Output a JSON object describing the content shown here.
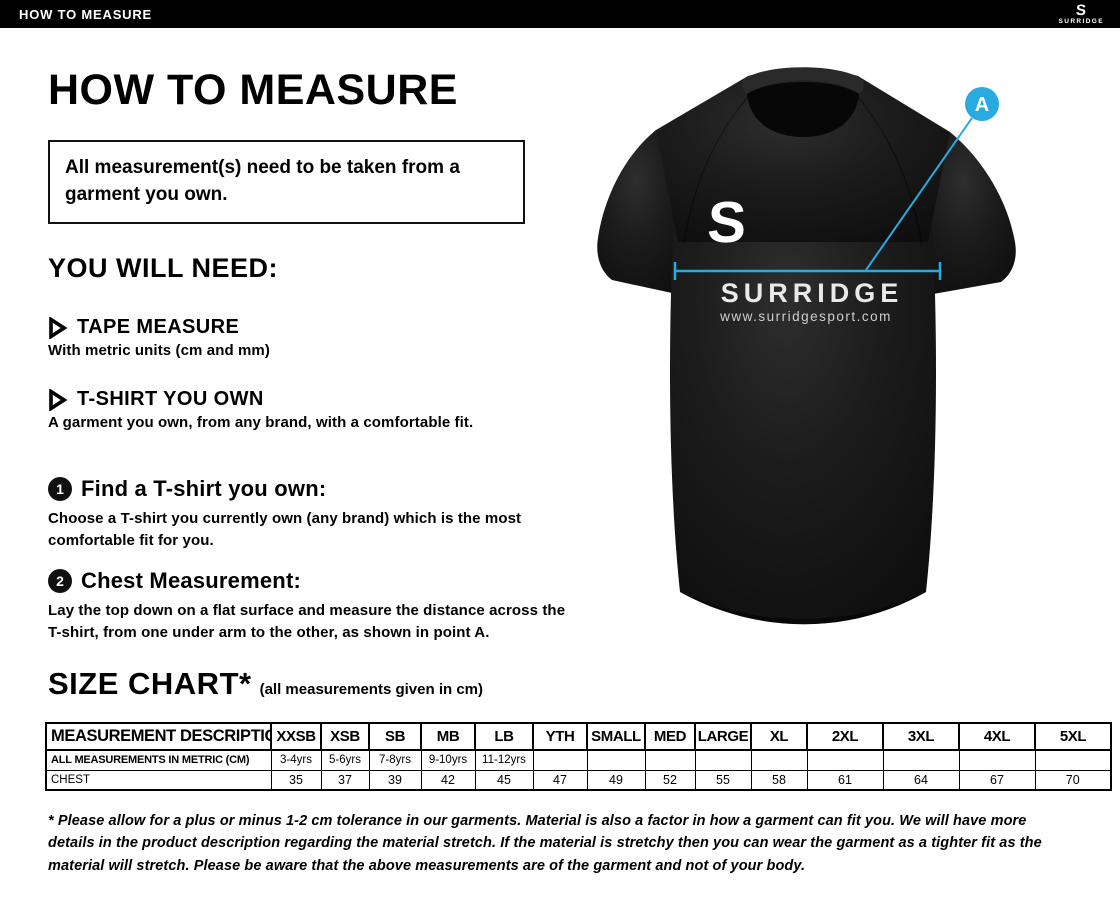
{
  "colors": {
    "accent": "#29abe2",
    "topbar_bg": "#000000",
    "text": "#000000"
  },
  "topbar": {
    "title": "HOW TO MEASURE",
    "logo": {
      "letter": "S",
      "brand": "SURRIDGE"
    }
  },
  "intro": {
    "title": "HOW TO MEASURE",
    "notice": "All measurement(s) need to be taken from a garment you own."
  },
  "you_will_need": {
    "heading": "YOU WILL NEED:",
    "items": [
      {
        "icon": "triangle-bullet-icon",
        "title": "TAPE MEASURE",
        "description": "With metric units (cm and mm)"
      },
      {
        "icon": "triangle-bullet-icon",
        "title": "T-SHIRT YOU OWN",
        "description": "A garment you own, from any brand, with a comfortable fit."
      }
    ]
  },
  "steps": [
    {
      "number": "1",
      "title": "Find a T-shirt you own:",
      "description": "Choose a T-shirt you currently own (any brand) which is the most comfortable fit for you."
    },
    {
      "number": "2",
      "title": "Chest Measurement:",
      "description": "Lay the top down on a flat surface and measure the distance across the T-shirt, from one under arm to the other, as shown in point A."
    }
  ],
  "size_chart": {
    "heading": "SIZE CHART*",
    "subheading": "(all measurements given in cm)",
    "table": {
      "columns": [
        "MEASUREMENT DESCRIPTION",
        "XXSB",
        "XSB",
        "SB",
        "MB",
        "LB",
        "YTH",
        "SMALL",
        "MED",
        "LARGE",
        "XL",
        "2XL",
        "3XL",
        "4XL",
        "5XL"
      ],
      "rows": [
        {
          "label": "ALL MEASUREMENTS IN METRIC (CM)",
          "values": [
            "3-4yrs",
            "5-6yrs",
            "7-8yrs",
            "9-10yrs",
            "11-12yrs",
            "",
            "",
            "",
            "",
            "",
            "",
            "",
            "",
            ""
          ]
        },
        {
          "label": "CHEST",
          "values": [
            "35",
            "37",
            "39",
            "42",
            "45",
            "47",
            "49",
            "52",
            "55",
            "58",
            "61",
            "64",
            "67",
            "70"
          ]
        }
      ]
    },
    "footnote": "* Please allow for a plus or minus 1-2 cm tolerance in our garments. Material is also a factor in how a garment can fit you. We will have more details in the product description regarding the material stretch.  If the material is stretchy then you can wear the garment as a tighter fit as the material will stretch.  Please be aware that the above measurements are of the garment and not of your body."
  },
  "figure": {
    "marker_label": "A",
    "shirt_logo_letter": "S",
    "shirt_brand": "SURRIDGE",
    "shirt_website": "www.surridgesport.com"
  }
}
